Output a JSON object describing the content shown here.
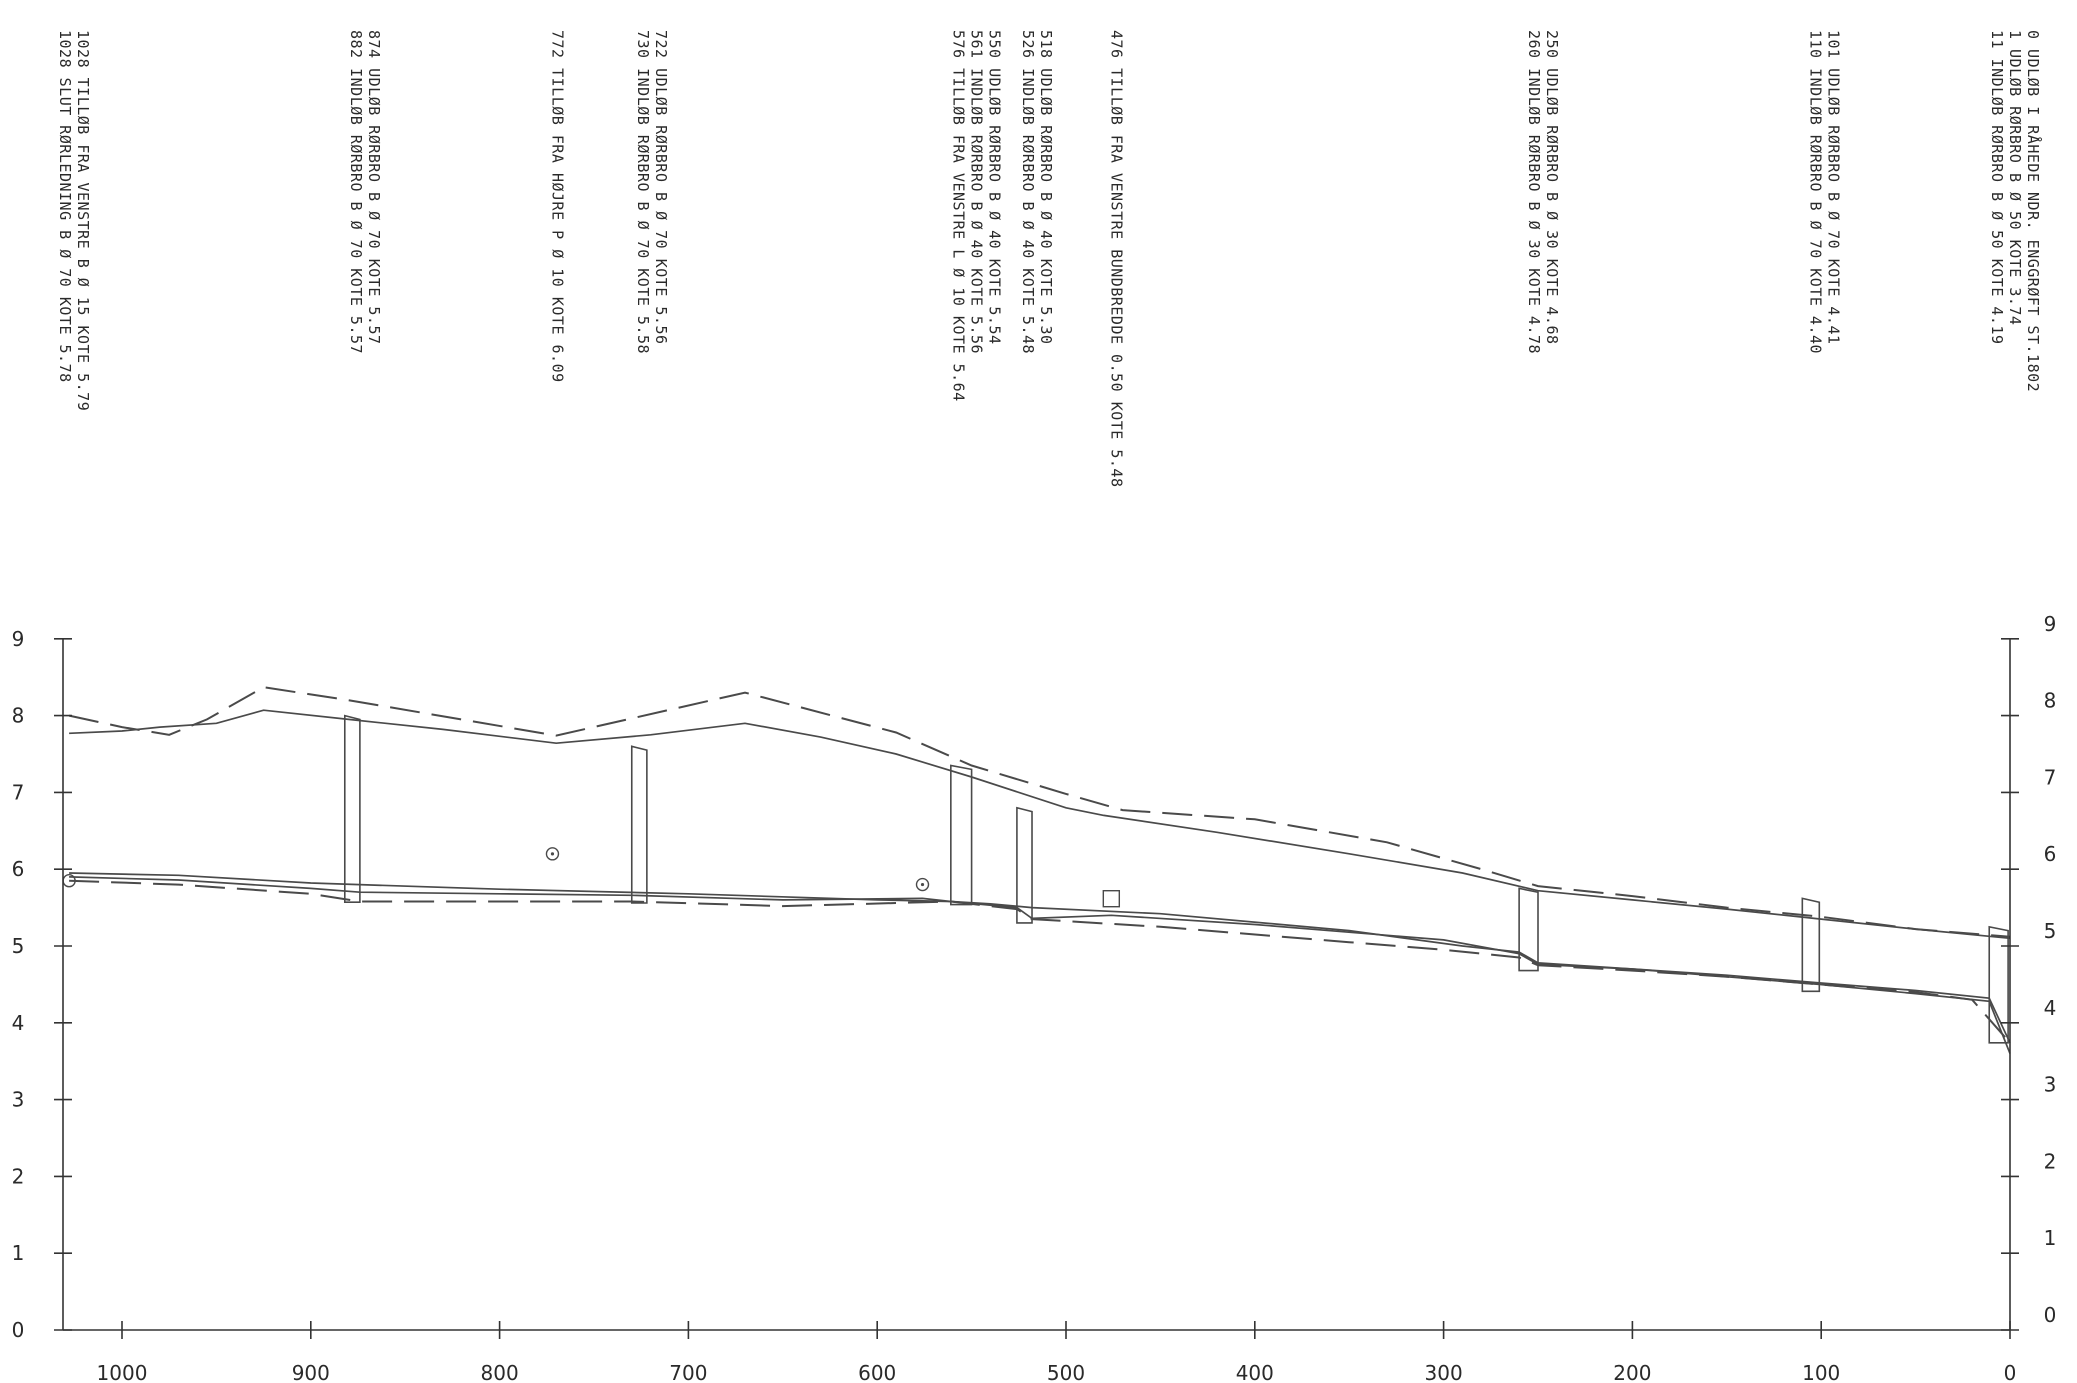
{
  "chart_data": {
    "type": "line",
    "title": "",
    "xlabel": "",
    "ylabel": "",
    "xlim": [
      1028,
      0
    ],
    "ylim": [
      0,
      9
    ],
    "x_ticks": [
      "1000",
      "900",
      "800",
      "700",
      "600",
      "500",
      "400",
      "300",
      "200",
      "100",
      "0"
    ],
    "y_ticks": [
      "0",
      "1",
      "2",
      "3",
      "4",
      "5",
      "6",
      "7",
      "8",
      "9"
    ],
    "grid": false,
    "colors": {
      "line": "#4a4a4a",
      "text": "#2a2a2a"
    },
    "annotations": [
      {
        "station": 0,
        "lines": [
          "0 UDLØB I RÅHEDE NDR. ENGGRØFT ST.1802",
          "1 UDLØB RØRBRO B Ø 50 KOTE  3.74",
          "11 INDLØB RØRBRO B Ø 50 KOTE  4.19"
        ]
      },
      {
        "station": 101,
        "lines": [
          "101 UDLØB RØRBRO B Ø 70 KOTE  4.41",
          "110 INDLØB RØRBRO B Ø 70 KOTE  4.40"
        ]
      },
      {
        "station": 250,
        "lines": [
          "250 UDLØB RØRBRO B Ø 30 KOTE  4.68",
          "260 INDLØB RØRBRO B Ø 30 KOTE  4.78"
        ]
      },
      {
        "station": 476,
        "lines": [
          "476 TILLØB FRA VENSTRE BUNDBREDDE 0.50 KOTE  5.48"
        ]
      },
      {
        "station": 518,
        "lines": [
          "518 UDLØB RØRBRO B Ø 40 KOTE  5.30",
          "526 INDLØB RØRBRO B Ø 40 KOTE  5.48"
        ]
      },
      {
        "station": 550,
        "lines": [
          "550 UDLØB RØRBRO B Ø 40 KOTE  5.54",
          "561 INDLØB RØRBRO B Ø 40 KOTE  5.56",
          "576 TILLØB FRA VENSTRE L Ø 10 KOTE  5.64"
        ]
      },
      {
        "station": 722,
        "lines": [
          "722 UDLØB RØRBRO B Ø 70 KOTE  5.56",
          "730 INDLØB RØRBRO B Ø 70 KOTE  5.58"
        ]
      },
      {
        "station": 772,
        "lines": [
          "772 TILLØB FRA HØJRE P Ø 10 KOTE  6.09"
        ]
      },
      {
        "station": 874,
        "lines": [
          "874 UDLØB RØRBRO B Ø 70 KOTE  5.57",
          "882 INDLØB RØRBRO B Ø 70 KOTE  5.57"
        ]
      },
      {
        "station": 1028,
        "lines": [
          "1028 TILLØB FRA VENSTRE B Ø 15 KOTE  5.79",
          "1028 SLUT RØRLEDNING B Ø 70 KOTE  5.78"
        ]
      }
    ],
    "series": [
      {
        "style": "solid",
        "x": [
          1028,
          1000,
          980,
          950,
          925,
          880,
          830,
          770,
          720,
          670,
          630,
          590,
          550,
          500,
          480,
          420,
          350,
          290,
          250,
          200,
          150,
          100,
          50,
          0
        ],
        "y": [
          7.77,
          7.8,
          7.85,
          7.9,
          8.07,
          7.95,
          7.82,
          7.64,
          7.75,
          7.9,
          7.72,
          7.5,
          7.2,
          6.8,
          6.7,
          6.48,
          6.2,
          5.95,
          5.72,
          5.6,
          5.48,
          5.35,
          5.22,
          5.1
        ]
      },
      {
        "style": "dashed",
        "x": [
          1028,
          1000,
          975,
          955,
          925,
          880,
          770,
          670,
          590,
          550,
          500,
          470,
          400,
          330,
          280,
          250,
          200,
          150,
          100,
          50,
          0
        ],
        "y": [
          8.0,
          7.85,
          7.75,
          7.95,
          8.37,
          8.2,
          7.74,
          8.3,
          7.78,
          7.35,
          6.98,
          6.77,
          6.65,
          6.35,
          6.0,
          5.78,
          5.65,
          5.5,
          5.38,
          5.22,
          5.12
        ]
      },
      {
        "style": "solid",
        "x": [
          1028,
          970,
          900,
          800,
          700,
          600,
          561,
          540,
          518,
          450,
          350,
          290,
          260,
          250,
          200,
          150,
          101,
          50,
          11,
          0
        ],
        "y": [
          5.95,
          5.92,
          5.82,
          5.74,
          5.68,
          5.6,
          5.58,
          5.55,
          5.5,
          5.42,
          5.2,
          5.0,
          4.92,
          4.78,
          4.7,
          4.62,
          4.52,
          4.42,
          4.32,
          3.74
        ]
      },
      {
        "style": "dashed",
        "x": [
          1028,
          970,
          900,
          874,
          800,
          730,
          650,
          561,
          526,
          518,
          450,
          350,
          300,
          260,
          250,
          200,
          150,
          101,
          50,
          20,
          0
        ],
        "y": [
          5.85,
          5.8,
          5.68,
          5.58,
          5.58,
          5.58,
          5.52,
          5.58,
          5.48,
          5.35,
          5.25,
          5.05,
          4.95,
          4.85,
          4.75,
          4.68,
          4.6,
          4.5,
          4.4,
          4.3,
          3.74
        ]
      },
      {
        "style": "solid",
        "x": [
          1028,
          970,
          900,
          874,
          800,
          730,
          650,
          576,
          561,
          526,
          518,
          476,
          400,
          300,
          260,
          250,
          200,
          101,
          50,
          11,
          0
        ],
        "y": [
          5.9,
          5.86,
          5.75,
          5.7,
          5.68,
          5.66,
          5.6,
          5.62,
          5.58,
          5.5,
          5.36,
          5.4,
          5.28,
          5.08,
          4.9,
          4.76,
          4.7,
          4.5,
          4.38,
          4.28,
          3.6
        ]
      }
    ]
  }
}
